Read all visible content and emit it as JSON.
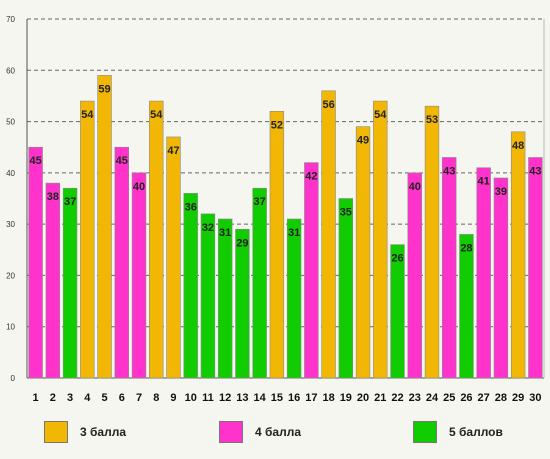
{
  "chart_data": {
    "type": "bar",
    "categories": [
      "1",
      "2",
      "3",
      "4",
      "5",
      "6",
      "7",
      "8",
      "9",
      "10",
      "11",
      "12",
      "13",
      "14",
      "15",
      "16",
      "17",
      "18",
      "19",
      "20",
      "21",
      "22",
      "23",
      "24",
      "25",
      "26",
      "27",
      "28",
      "29",
      "30"
    ],
    "values": [
      45,
      38,
      37,
      54,
      59,
      45,
      40,
      54,
      47,
      36,
      32,
      31,
      29,
      37,
      52,
      31,
      42,
      56,
      35,
      49,
      54,
      26,
      40,
      53,
      43,
      28,
      41,
      39,
      48,
      43
    ],
    "grades": [
      4,
      4,
      5,
      3,
      3,
      4,
      4,
      3,
      3,
      5,
      5,
      5,
      5,
      5,
      3,
      5,
      4,
      3,
      5,
      3,
      3,
      5,
      4,
      3,
      4,
      5,
      4,
      4,
      3,
      4
    ],
    "ylim": [
      0,
      70
    ],
    "yticks": [
      0,
      10,
      20,
      30,
      40,
      50,
      60,
      70
    ],
    "title": "",
    "xlabel": "",
    "ylabel": "",
    "grid": true,
    "legend_position": "bottom",
    "colors": {
      "3": "#f2b705",
      "4": "#ff33cc",
      "5": "#11cc00"
    }
  },
  "legend": [
    {
      "grade": 3,
      "label": "3 балла",
      "color": "#f2b705"
    },
    {
      "grade": 4,
      "label": "4 балла",
      "color": "#ff33cc"
    },
    {
      "grade": 5,
      "label": "5 баллов",
      "color": "#11cc00"
    }
  ]
}
